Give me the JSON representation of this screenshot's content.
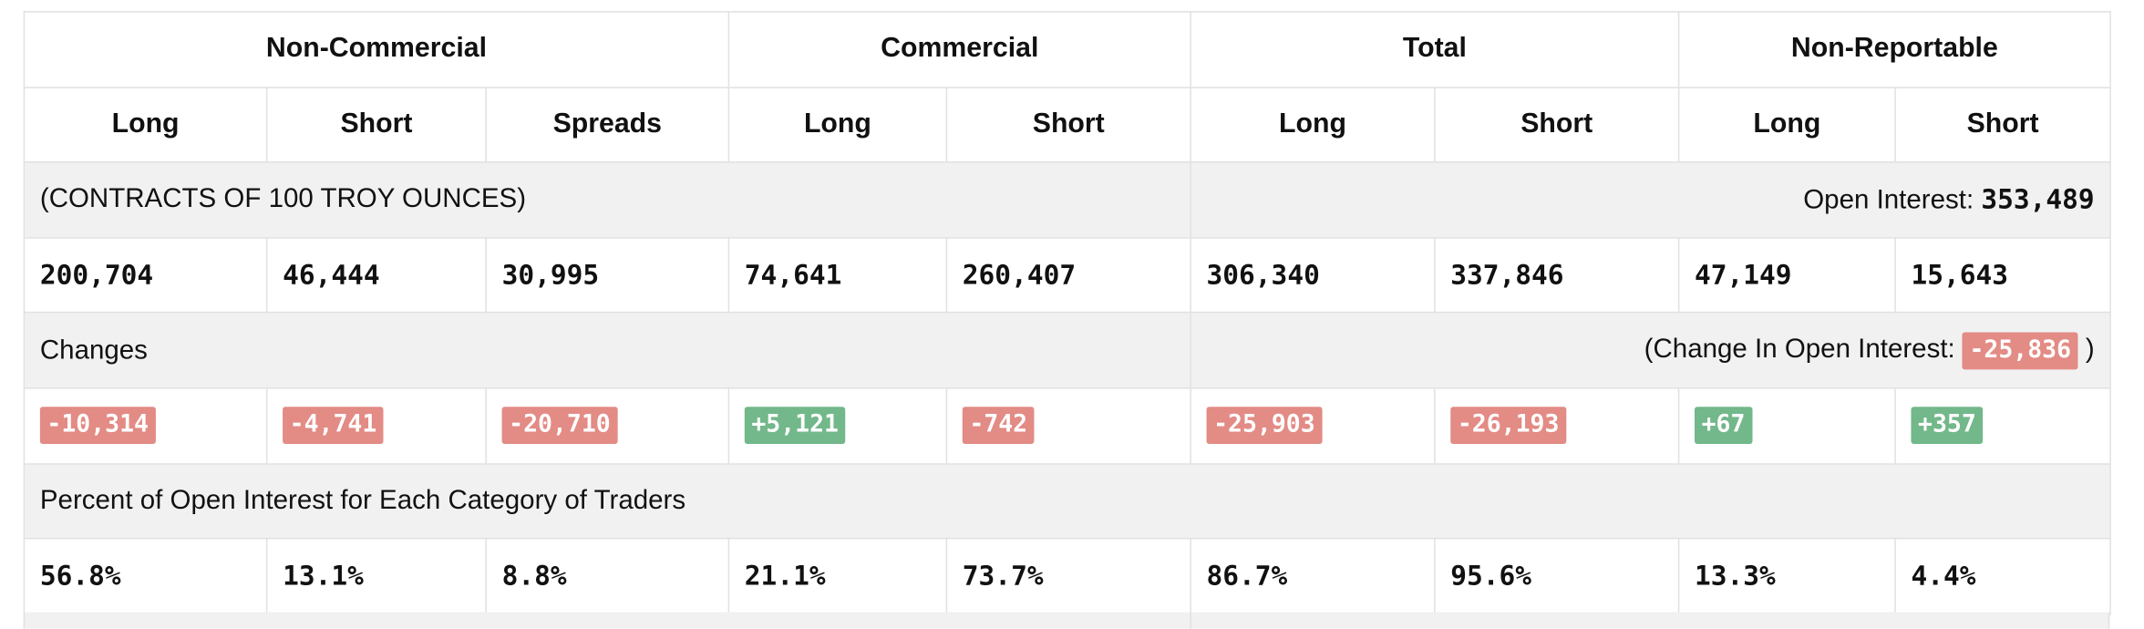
{
  "groups": {
    "non_commercial": "Non-Commercial",
    "commercial": "Commercial",
    "total": "Total",
    "non_reportable": "Non-Reportable"
  },
  "columns": [
    "Long",
    "Short",
    "Spreads",
    "Long",
    "Short",
    "Long",
    "Short",
    "Long",
    "Short"
  ],
  "contracts_label": "(CONTRACTS OF 100 TROY OUNCES)",
  "open_interest": {
    "label": "Open Interest: ",
    "value": "353,489"
  },
  "positions": [
    "200,704",
    "46,444",
    "30,995",
    "74,641",
    "260,407",
    "306,340",
    "337,846",
    "47,149",
    "15,643"
  ],
  "changes_label": "Changes",
  "change_in_open_interest": {
    "label": "(Change In Open Interest: ",
    "value": "-25,836",
    "suffix": " )"
  },
  "changes": [
    "-10,314",
    "-4,741",
    "-20,710",
    "+5,121",
    "-742",
    "-25,903",
    "-26,193",
    "+67",
    "+357"
  ],
  "percent_label": "Percent of Open Interest for Each Category of Traders",
  "percents": [
    "56.8%",
    "13.1%",
    "8.8%",
    "21.1%",
    "73.7%",
    "86.7%",
    "95.6%",
    "13.3%",
    "4.4%"
  ],
  "colors": {
    "negative": "#e38b85",
    "positive": "#72b88a",
    "band_background": "#f1f1f1",
    "border": "#e1e1e1"
  }
}
